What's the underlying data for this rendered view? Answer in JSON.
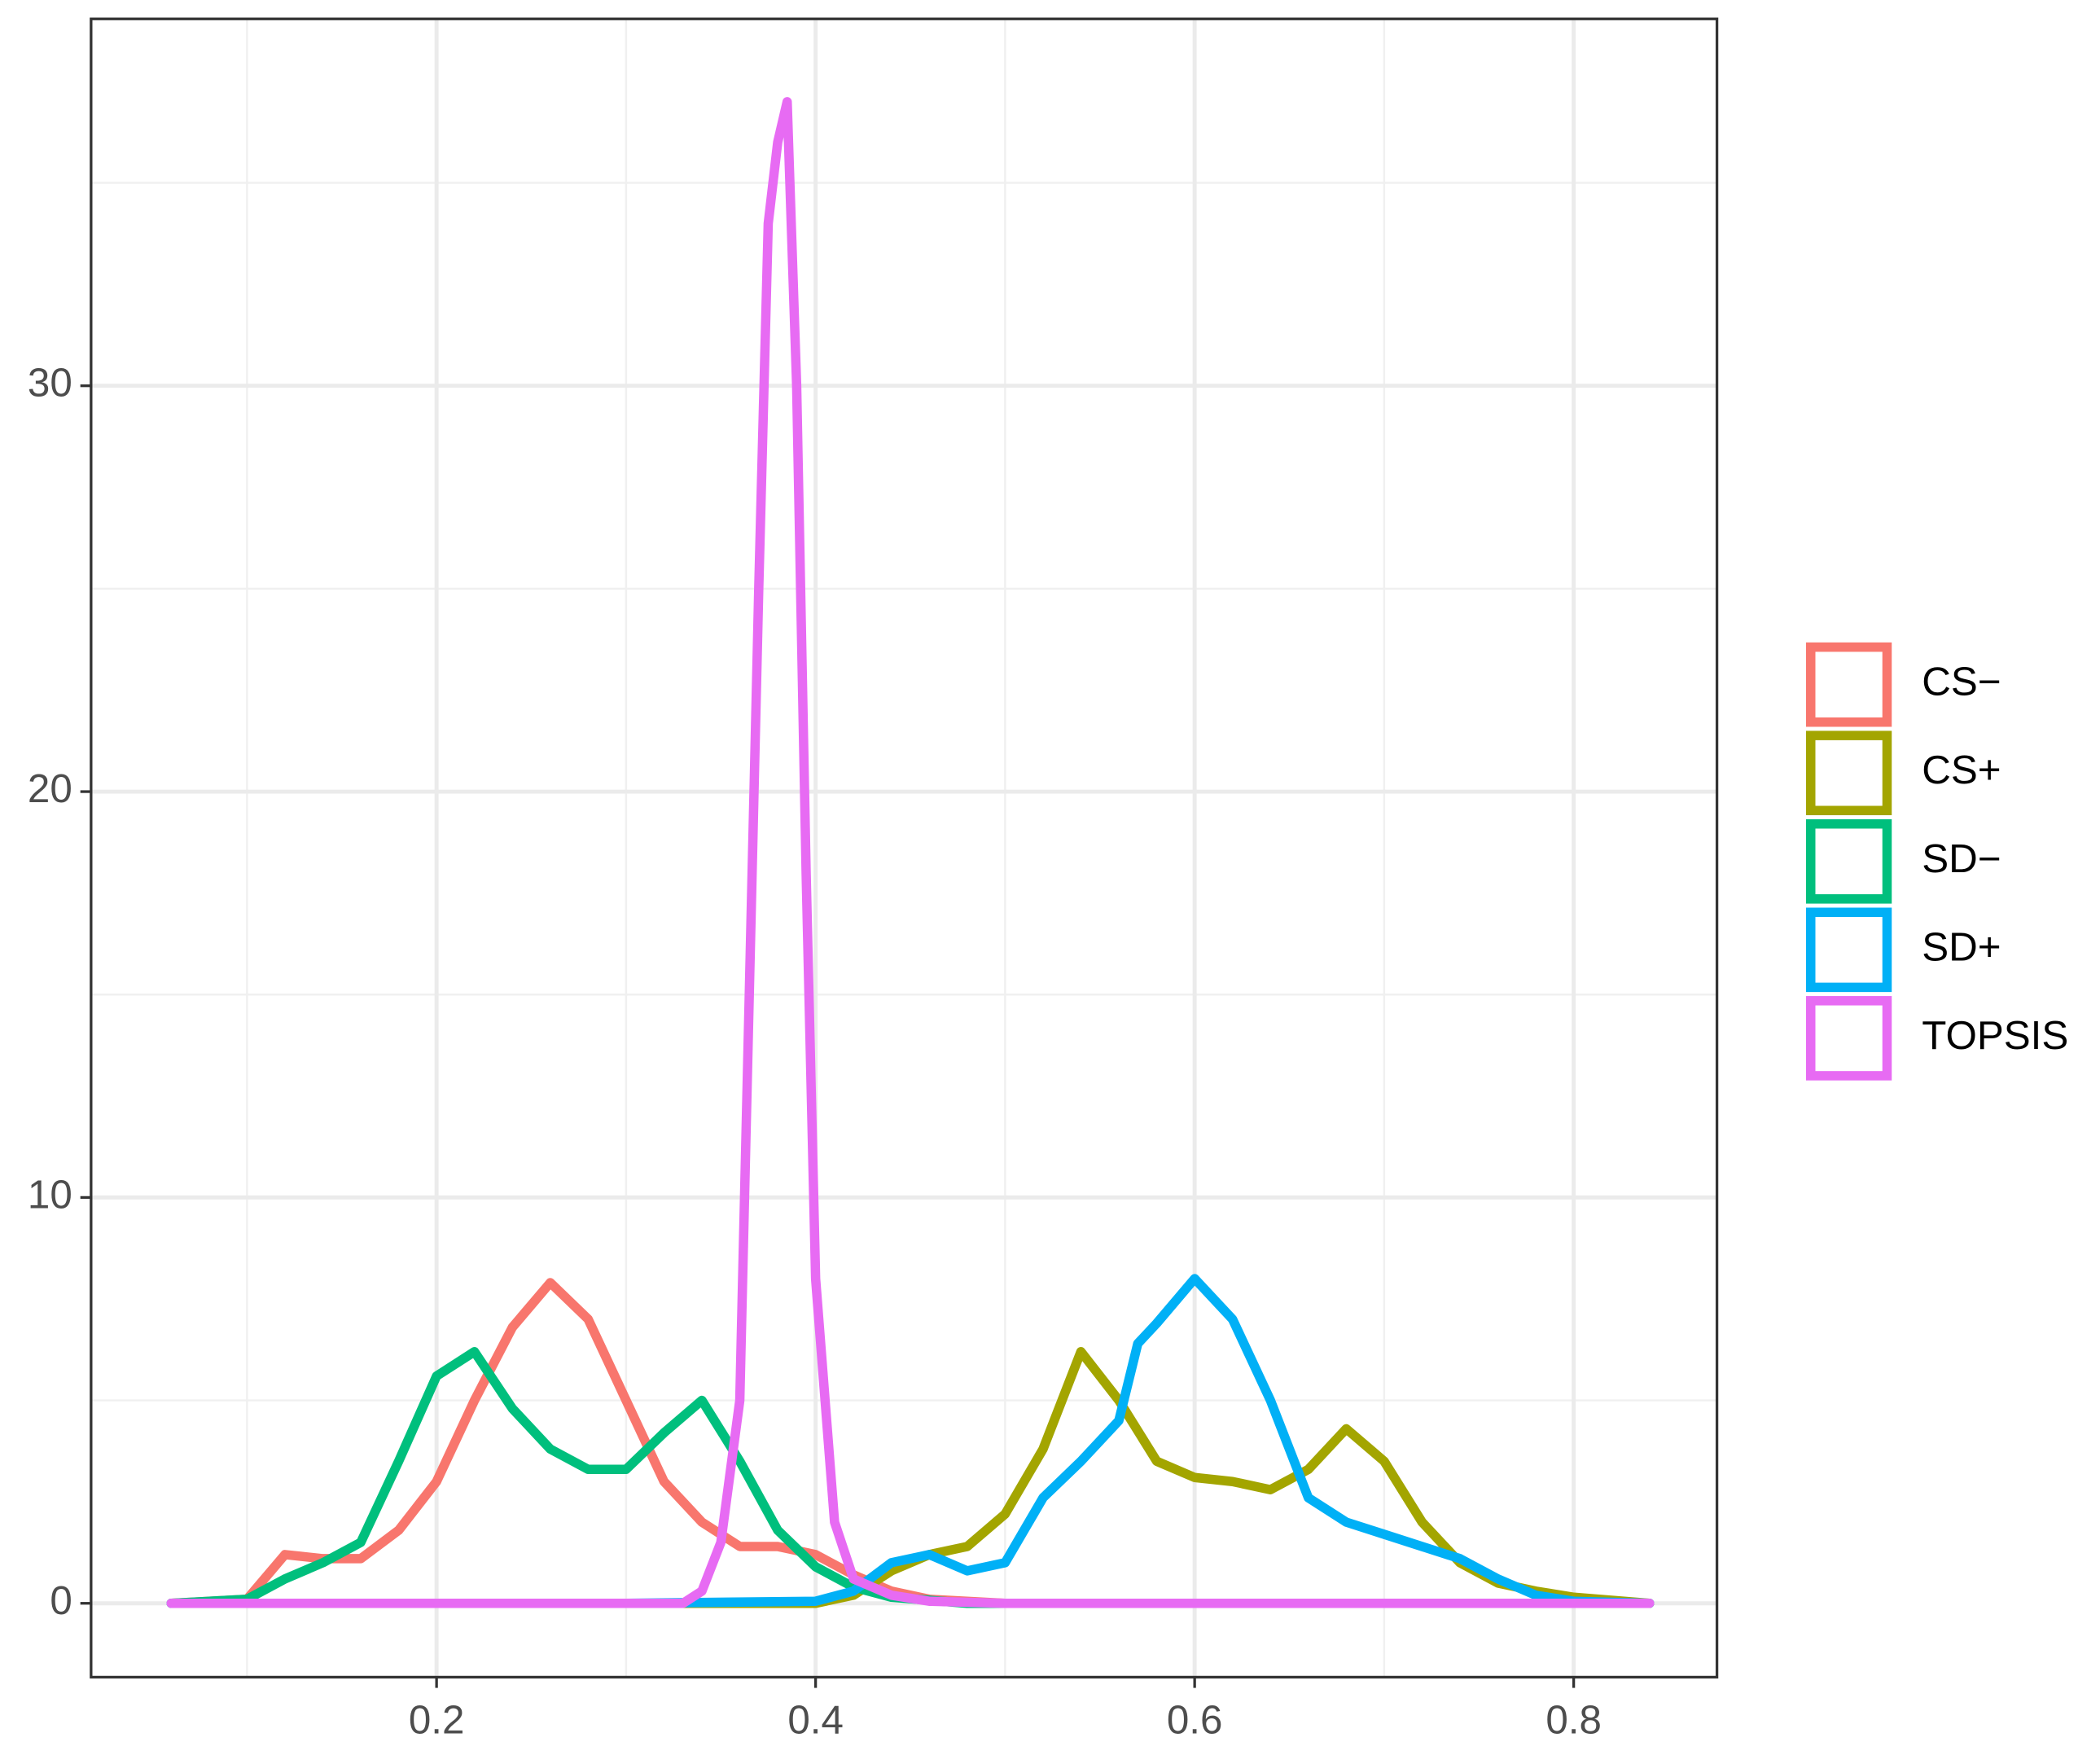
{
  "chart_data": {
    "type": "line",
    "xlim": [
      0.0177,
      0.8756
    ],
    "ylim": [
      -1.82,
      39.04
    ],
    "xticks": [
      0.2,
      0.4,
      0.6,
      0.8
    ],
    "yticks": [
      0,
      10,
      20,
      30
    ],
    "xminor": [
      0.1,
      0.3,
      0.5,
      0.7
    ],
    "yminor": [
      5,
      15,
      25,
      35
    ],
    "grid": true,
    "legend": "right",
    "series": [
      {
        "name": "CS−",
        "color": "#F8766D",
        "x": [
          0.06,
          0.1,
          0.12,
          0.14,
          0.16,
          0.18,
          0.2,
          0.22,
          0.24,
          0.26,
          0.28,
          0.3,
          0.32,
          0.34,
          0.36,
          0.38,
          0.4,
          0.42,
          0.44,
          0.46,
          0.5,
          0.84
        ],
        "values": [
          0,
          0.1,
          1.2,
          1.1,
          1.1,
          1.8,
          3,
          5,
          6.8,
          7.9,
          7,
          5,
          3,
          2,
          1.4,
          1.4,
          1.2,
          0.7,
          0.3,
          0.1,
          0,
          0
        ]
      },
      {
        "name": "CS+",
        "color": "#A3A500",
        "x": [
          0.06,
          0.4,
          0.42,
          0.44,
          0.46,
          0.48,
          0.5,
          0.52,
          0.54,
          0.56,
          0.58,
          0.6,
          0.62,
          0.64,
          0.66,
          0.68,
          0.7,
          0.72,
          0.74,
          0.76,
          0.78,
          0.8,
          0.84
        ],
        "values": [
          0,
          0,
          0.2,
          0.8,
          1.2,
          1.4,
          2.2,
          3.8,
          6.2,
          5,
          3.5,
          3.1,
          3,
          2.8,
          3.3,
          4.3,
          3.5,
          2,
          1,
          0.5,
          0.3,
          0.15,
          0
        ]
      },
      {
        "name": "SD−",
        "color": "#00BF7D",
        "x": [
          0.06,
          0.1,
          0.12,
          0.14,
          0.16,
          0.18,
          0.2,
          0.22,
          0.24,
          0.26,
          0.28,
          0.3,
          0.32,
          0.34,
          0.36,
          0.38,
          0.4,
          0.42,
          0.44,
          0.48,
          0.84
        ],
        "values": [
          0,
          0.1,
          0.6,
          1,
          1.5,
          3.5,
          5.6,
          6.2,
          4.8,
          3.8,
          3.3,
          3.3,
          4.2,
          5,
          3.5,
          1.8,
          0.9,
          0.4,
          0.15,
          0,
          0
        ]
      },
      {
        "name": "SD+",
        "color": "#00B0F6",
        "x": [
          0.06,
          0.3,
          0.4,
          0.42,
          0.44,
          0.46,
          0.48,
          0.5,
          0.52,
          0.54,
          0.56,
          0.57,
          0.58,
          0.6,
          0.62,
          0.64,
          0.66,
          0.68,
          0.7,
          0.72,
          0.74,
          0.76,
          0.78,
          0.8,
          0.84
        ],
        "values": [
          0,
          0,
          0.05,
          0.3,
          1,
          1.2,
          0.8,
          1,
          2.6,
          3.5,
          4.5,
          6.4,
          6.9,
          8,
          7,
          5,
          2.6,
          2,
          1.7,
          1.4,
          1.1,
          0.6,
          0.2,
          0.05,
          0
        ]
      },
      {
        "name": "TOPSIS",
        "color": "#E76BF3",
        "x": [
          0.06,
          0.33,
          0.34,
          0.35,
          0.36,
          0.37,
          0.375,
          0.38,
          0.385,
          0.39,
          0.395,
          0.4,
          0.41,
          0.42,
          0.44,
          0.46,
          0.5,
          0.84
        ],
        "values": [
          0,
          0,
          0.3,
          1.5,
          5,
          25,
          34,
          36,
          37,
          30,
          18,
          8,
          2,
          0.6,
          0.2,
          0.05,
          0,
          0
        ]
      }
    ]
  }
}
